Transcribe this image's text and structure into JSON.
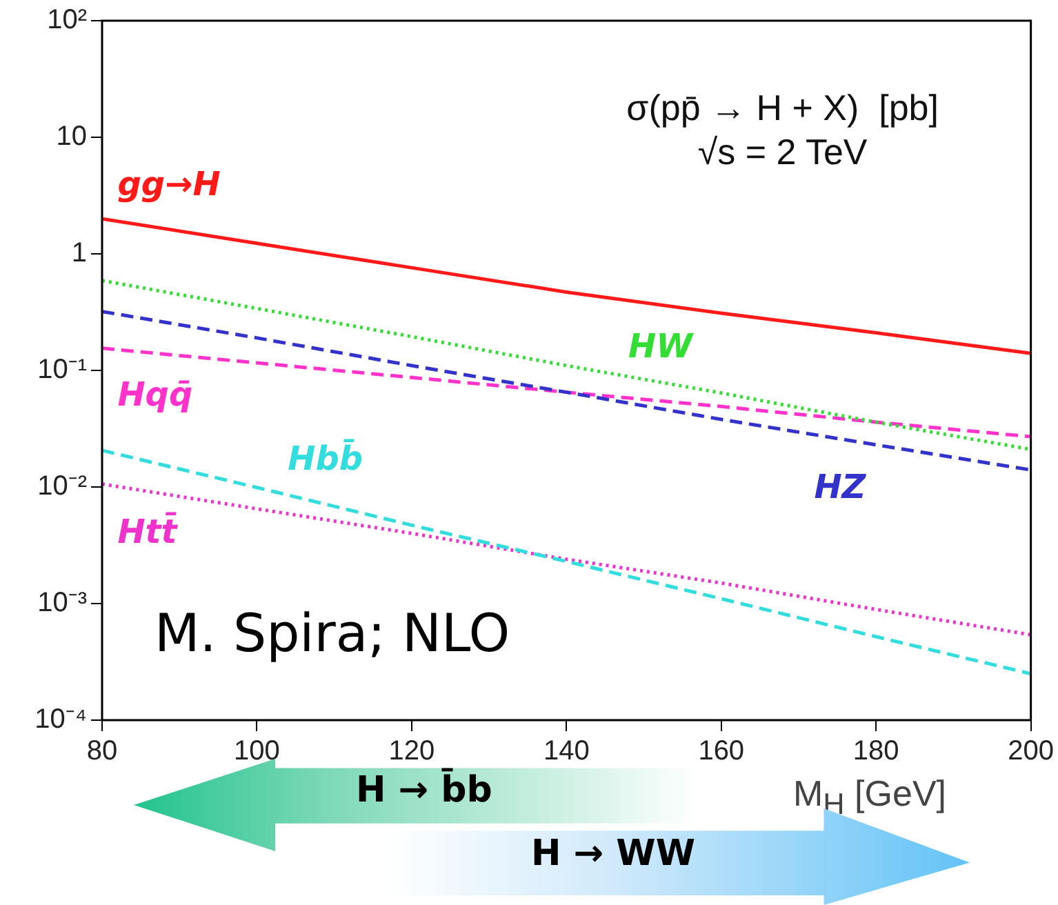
{
  "chart_data": {
    "type": "line",
    "title": "σ(pp̄ → H + X)  [pb]",
    "subtitle": "√s = 2 TeV",
    "xlabel": "M$_{H}$  [GeV]",
    "x": [
      80,
      100,
      120,
      140,
      160,
      180,
      200
    ],
    "series": [
      {
        "name": "gg→H",
        "color": "#ff1a1a",
        "line_style": "solid",
        "values": [
          2.0,
          1.23,
          0.76,
          0.47,
          0.31,
          0.21,
          0.14
        ]
      },
      {
        "name": "HW",
        "color": "#33dd33",
        "line_style": "dotted",
        "values": [
          0.59,
          0.34,
          0.195,
          0.11,
          0.064,
          0.036,
          0.021
        ]
      },
      {
        "name": "HZ",
        "color": "#3333cc",
        "line_style": "dashed",
        "values": [
          0.32,
          0.19,
          0.11,
          0.065,
          0.038,
          0.023,
          0.014
        ]
      },
      {
        "name": "Hqq̄",
        "color": "#ff33cc",
        "line_style": "dashed",
        "values": [
          0.155,
          0.116,
          0.087,
          0.065,
          0.049,
          0.036,
          0.027
        ]
      },
      {
        "name": "Hbb̄",
        "color": "#33dddd",
        "line_style": "dashed",
        "values": [
          0.0206,
          0.0099,
          0.0047,
          0.0023,
          0.0011,
          0.00052,
          0.00025
        ]
      },
      {
        "name": "Htt̄",
        "color": "#ee33cc",
        "line_style": "dotted",
        "values": [
          0.0106,
          0.0065,
          0.004,
          0.0024,
          0.0015,
          0.00089,
          0.00054
        ]
      }
    ],
    "xlim": [
      80,
      200
    ],
    "xticks": [
      80,
      100,
      120,
      140,
      160,
      180,
      200
    ],
    "ylim": [
      0.0001,
      100
    ],
    "yticks": [
      {
        "value": 0.0001,
        "label": "10⁻⁴"
      },
      {
        "value": 0.001,
        "label": "10⁻³"
      },
      {
        "value": 0.01,
        "label": "10⁻²"
      },
      {
        "value": 0.1,
        "label": "10⁻¹"
      },
      1,
      10,
      {
        "value": 100,
        "label": "10²"
      }
    ],
    "log": "y",
    "grid": false,
    "legend": false,
    "marker": "none",
    "annotations": [
      "M. Spira; NLO",
      "H → b̄b",
      "H → WW"
    ]
  }
}
